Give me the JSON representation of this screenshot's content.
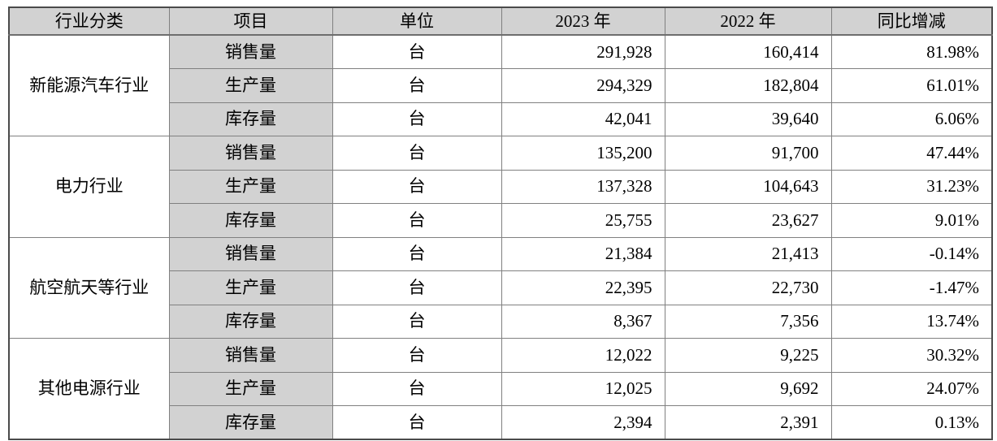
{
  "table": {
    "headers": [
      "行业分类",
      "项目",
      "单位",
      "2023 年",
      "2022 年",
      "同比增减"
    ],
    "groups": [
      {
        "industry": "新能源汽车行业",
        "rows": [
          {
            "item": "销售量",
            "unit": "台",
            "y2023": "291,928",
            "y2022": "160,414",
            "yoy": "81.98%"
          },
          {
            "item": "生产量",
            "unit": "台",
            "y2023": "294,329",
            "y2022": "182,804",
            "yoy": "61.01%"
          },
          {
            "item": "库存量",
            "unit": "台",
            "y2023": "42,041",
            "y2022": "39,640",
            "yoy": "6.06%"
          }
        ]
      },
      {
        "industry": "电力行业",
        "rows": [
          {
            "item": "销售量",
            "unit": "台",
            "y2023": "135,200",
            "y2022": "91,700",
            "yoy": "47.44%"
          },
          {
            "item": "生产量",
            "unit": "台",
            "y2023": "137,328",
            "y2022": "104,643",
            "yoy": "31.23%"
          },
          {
            "item": "库存量",
            "unit": "台",
            "y2023": "25,755",
            "y2022": "23,627",
            "yoy": "9.01%"
          }
        ]
      },
      {
        "industry": "航空航天等行业",
        "rows": [
          {
            "item": "销售量",
            "unit": "台",
            "y2023": "21,384",
            "y2022": "21,413",
            "yoy": "-0.14%"
          },
          {
            "item": "生产量",
            "unit": "台",
            "y2023": "22,395",
            "y2022": "22,730",
            "yoy": "-1.47%"
          },
          {
            "item": "库存量",
            "unit": "台",
            "y2023": "8,367",
            "y2022": "7,356",
            "yoy": "13.74%"
          }
        ]
      },
      {
        "industry": "其他电源行业",
        "rows": [
          {
            "item": "销售量",
            "unit": "台",
            "y2023": "12,022",
            "y2022": "9,225",
            "yoy": "30.32%"
          },
          {
            "item": "生产量",
            "unit": "台",
            "y2023": "12,025",
            "y2022": "9,692",
            "yoy": "24.07%"
          },
          {
            "item": "库存量",
            "unit": "台",
            "y2023": "2,394",
            "y2022": "2,391",
            "yoy": "0.13%"
          }
        ]
      }
    ],
    "colors": {
      "header_fill": "#d2d2d2",
      "item_column_fill": "#d2d2d2",
      "inner_border": "#808080",
      "outer_border": "#4a4a4a"
    }
  }
}
